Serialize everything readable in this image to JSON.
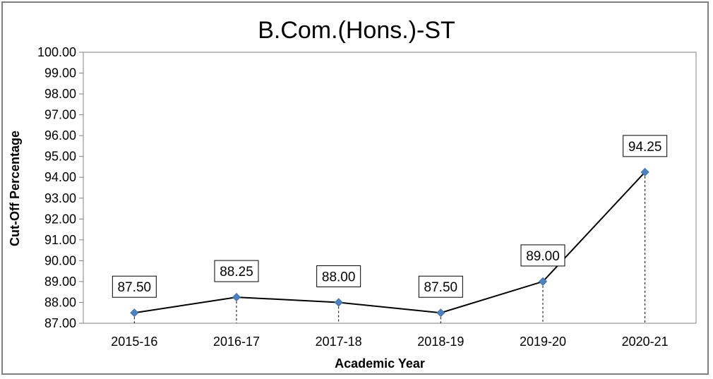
{
  "chart_data": {
    "type": "line",
    "title": "B.Com.(Hons.)-ST",
    "xlabel": "Academic Year",
    "ylabel": "Cut-Off Percentage",
    "categories": [
      "2015-16",
      "2016-17",
      "2017-18",
      "2018-19",
      "2019-20",
      "2020-21"
    ],
    "series": [
      {
        "values": [
          87.5,
          88.25,
          88.0,
          87.5,
          89.0,
          94.25
        ],
        "data_labels": [
          "87.50",
          "88.25",
          "88.00",
          "87.50",
          "89.00",
          "94.25"
        ]
      }
    ],
    "ylim": [
      87.0,
      100.0
    ],
    "yticks": [
      "87.00",
      "88.00",
      "89.00",
      "90.00",
      "91.00",
      "92.00",
      "93.00",
      "94.00",
      "95.00",
      "96.00",
      "97.00",
      "98.00",
      "99.00",
      "100.00"
    ],
    "grid": false,
    "drop_lines": true,
    "colors": {
      "line": "#000000",
      "marker": "#4f81bd",
      "plot_border": "#808080"
    }
  }
}
